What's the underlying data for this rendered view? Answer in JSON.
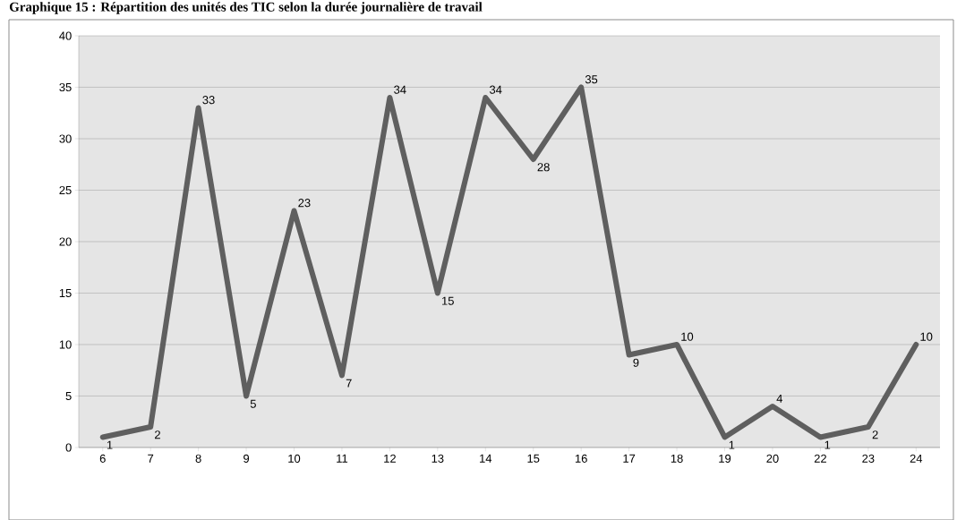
{
  "chart_data": {
    "type": "line",
    "title": "Graphique 15 : Répartition des unités des TIC selon la durée journalière de travail",
    "categories": [
      "6",
      "7",
      "8",
      "9",
      "10",
      "11",
      "12",
      "13",
      "14",
      "15",
      "16",
      "17",
      "18",
      "19",
      "20",
      "22",
      "23",
      "24"
    ],
    "series": [
      {
        "color": "#5f5f5f",
        "values": [
          1,
          2,
          33,
          5,
          23,
          7,
          34,
          15,
          34,
          28,
          35,
          9,
          10,
          1,
          4,
          1,
          2,
          10
        ]
      }
    ],
    "ylim": [
      0,
      40
    ],
    "yticks": [
      0,
      5,
      10,
      15,
      20,
      25,
      30,
      35,
      40
    ],
    "grid": "y",
    "marker": "none",
    "line_style": "solid",
    "data_labels": true
  }
}
